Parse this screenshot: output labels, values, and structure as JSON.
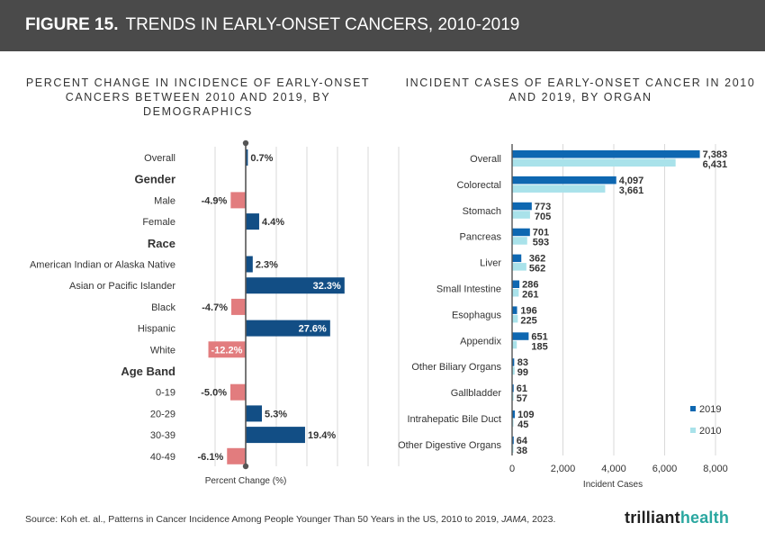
{
  "header": {
    "figure_label": "FIGURE 15.",
    "title": "TRENDS IN EARLY-ONSET CANCERS, 2010-2019"
  },
  "colors": {
    "header_bg": "#4a4a4a",
    "positive": "#124e85",
    "negative": "#e27c7e",
    "series_2019": "#0e67b1",
    "series_2010": "#a9e2ea"
  },
  "chart_data": [
    {
      "type": "bar",
      "orientation": "horizontal",
      "title": "PERCENT CHANGE IN INCIDENCE OF EARLY-ONSET CANCERS BETWEEN 2010 AND 2019, BY DEMOGRAPHICS",
      "xlabel": "Percent Change (%)",
      "xlim": [
        -20,
        50
      ],
      "rows": [
        {
          "kind": "bar",
          "label": "Overall",
          "value": 0.7,
          "display": "0.7%"
        },
        {
          "kind": "group",
          "label": "Gender"
        },
        {
          "kind": "bar",
          "label": "Male",
          "value": -4.9,
          "display": "-4.9%"
        },
        {
          "kind": "bar",
          "label": "Female",
          "value": 4.4,
          "display": "4.4%"
        },
        {
          "kind": "group",
          "label": "Race"
        },
        {
          "kind": "bar",
          "label": "American Indian or Alaska Native",
          "value": 2.3,
          "display": "2.3%"
        },
        {
          "kind": "bar",
          "label": "Asian or Pacific Islander",
          "value": 32.3,
          "display": "32.3%"
        },
        {
          "kind": "bar",
          "label": "Black",
          "value": -4.7,
          "display": "-4.7%"
        },
        {
          "kind": "bar",
          "label": "Hispanic",
          "value": 27.6,
          "display": "27.6%"
        },
        {
          "kind": "bar",
          "label": "White",
          "value": -12.2,
          "display": "-12.2%"
        },
        {
          "kind": "group",
          "label": "Age Band"
        },
        {
          "kind": "bar",
          "label": "0-19",
          "value": -5.0,
          "display": "-5.0%"
        },
        {
          "kind": "bar",
          "label": "20-29",
          "value": 5.3,
          "display": "5.3%"
        },
        {
          "kind": "bar",
          "label": "30-39",
          "value": 19.4,
          "display": "19.4%"
        },
        {
          "kind": "bar",
          "label": "40-49",
          "value": -6.1,
          "display": "-6.1%"
        }
      ]
    },
    {
      "type": "bar",
      "orientation": "horizontal",
      "title": "INCIDENT CASES OF EARLY-ONSET CANCER IN 2010 AND 2019, BY ORGAN",
      "xlabel": "Incident Cases",
      "xlim": [
        0,
        8000
      ],
      "xticks": [
        0,
        2000,
        4000,
        6000,
        8000
      ],
      "xtick_labels": [
        "0",
        "2,000",
        "4,000",
        "6,000",
        "8,000"
      ],
      "categories": [
        "Overall",
        "Colorectal",
        "Stomach",
        "Pancreas",
        "Liver",
        "Small Intestine",
        "Esophagus",
        "Appendix",
        "Other Biliary Organs",
        "Gallbladder",
        "Intrahepatic Bile Duct",
        "Other Digestive Organs"
      ],
      "series": [
        {
          "name": "2019",
          "values": [
            7383,
            4097,
            773,
            701,
            362,
            286,
            196,
            651,
            83,
            61,
            109,
            64
          ],
          "labels": [
            "7,383",
            "4,097",
            "773",
            "701",
            "362",
            "286",
            "196",
            "651",
            "83",
            "61",
            "109",
            "64"
          ]
        },
        {
          "name": "2010",
          "values": [
            6431,
            3661,
            705,
            593,
            562,
            261,
            225,
            185,
            99,
            57,
            45,
            38
          ],
          "labels": [
            "6,431",
            "3,661",
            "705",
            "593",
            "562",
            "261",
            "225",
            "185",
            "99",
            "57",
            "45",
            "38"
          ]
        }
      ],
      "legend": {
        "position": "bottom-right",
        "entries": [
          "2019",
          "2010"
        ]
      }
    }
  ],
  "footer": {
    "source_prefix": "Source: Koh et. al., Patterns in Cancer Incidence Among People Younger Than 50 Years in the US, 2010 to 2019, ",
    "source_journal": "JAMA",
    "source_suffix": ", 2023.",
    "logo_text_1": "trilliant",
    "logo_text_2": "health"
  }
}
